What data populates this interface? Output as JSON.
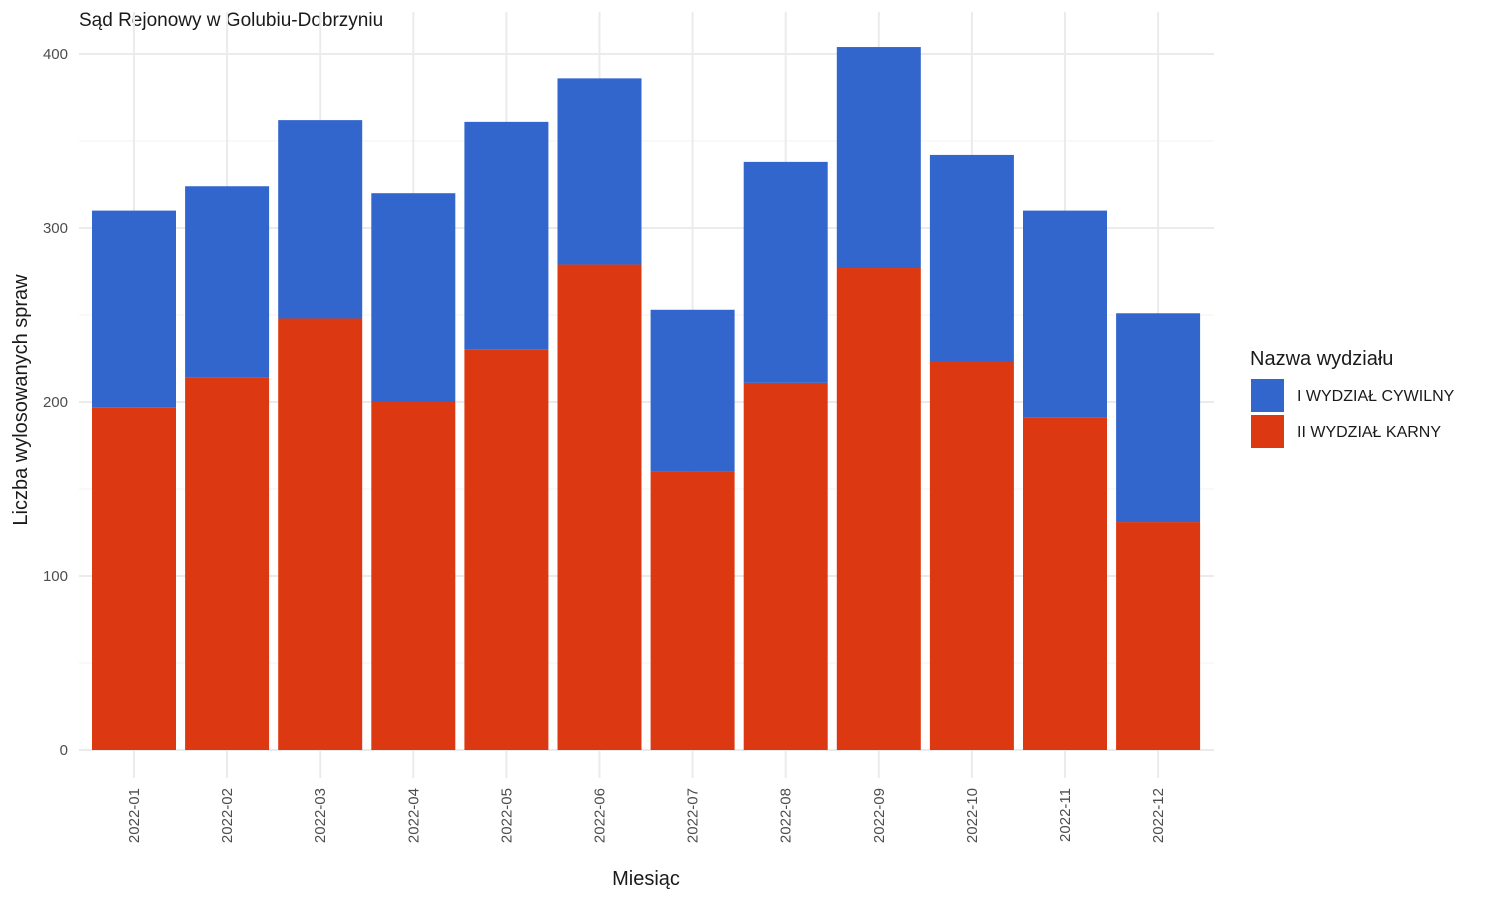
{
  "chart_data": {
    "type": "bar",
    "stacked": true,
    "subtitle": "Sąd Rejonowy w Golubiu-Dobrzyniu",
    "xlabel": "Miesiąc",
    "ylabel": "Liczba wylosowanych spraw",
    "ylim": [
      0,
      400
    ],
    "yticks": [
      0,
      100,
      200,
      300,
      400
    ],
    "grid": true,
    "legend": {
      "title": "Nazwa wydziału",
      "position": "right"
    },
    "categories": [
      "2022-01",
      "2022-02",
      "2022-03",
      "2022-04",
      "2022-05",
      "2022-06",
      "2022-07",
      "2022-08",
      "2022-09",
      "2022-10",
      "2022-11",
      "2022-12"
    ],
    "series": [
      {
        "name": "II WYDZIAŁ KARNY",
        "color": "#dc3912",
        "values": [
          197,
          214,
          248,
          200,
          230,
          279,
          160,
          211,
          277,
          223,
          191,
          131
        ]
      },
      {
        "name": "I WYDZIAŁ CYWILNY",
        "color": "#3366cc",
        "values": [
          113,
          110,
          114,
          120,
          131,
          107,
          93,
          127,
          127,
          119,
          119,
          120
        ]
      }
    ],
    "legend_order": [
      "I WYDZIAŁ CYWILNY",
      "II WYDZIAŁ KARNY"
    ]
  }
}
